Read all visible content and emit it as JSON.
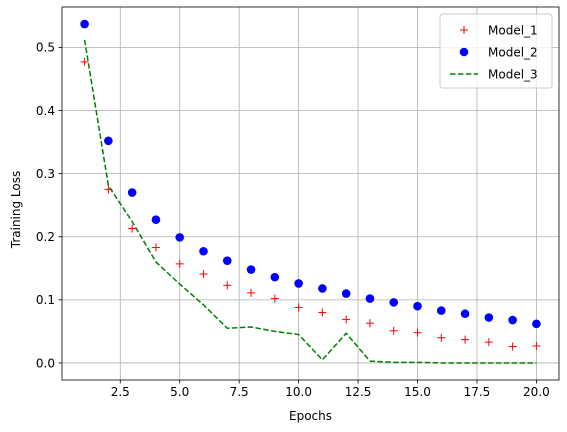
{
  "chart_data": {
    "type": "line",
    "xlabel": "Epochs",
    "ylabel": "Training Loss",
    "xlim": [
      0.05,
      20.95
    ],
    "ylim": [
      -0.027,
      0.564
    ],
    "xticks": [
      2.5,
      5.0,
      7.5,
      10.0,
      12.5,
      15.0,
      17.5,
      20.0
    ],
    "xtick_labels": [
      "2.5",
      "5.0",
      "7.5",
      "10.0",
      "12.5",
      "15.0",
      "17.5",
      "20.0"
    ],
    "yticks": [
      0.0,
      0.1,
      0.2,
      0.3,
      0.4,
      0.5
    ],
    "ytick_labels": [
      "0.0",
      "0.1",
      "0.2",
      "0.3",
      "0.4",
      "0.5"
    ],
    "grid": true,
    "legend_position": "top-right",
    "x": [
      1,
      2,
      3,
      4,
      5,
      6,
      7,
      8,
      9,
      10,
      11,
      12,
      13,
      14,
      15,
      16,
      17,
      18,
      19,
      20
    ],
    "series": [
      {
        "name": "Model_1",
        "style": "plus-marker",
        "color": "#ff0000",
        "values": [
          0.477,
          0.275,
          0.213,
          0.183,
          0.157,
          0.141,
          0.123,
          0.111,
          0.102,
          0.088,
          0.08,
          0.069,
          0.063,
          0.051,
          0.048,
          0.04,
          0.037,
          0.033,
          0.026,
          0.027
        ]
      },
      {
        "name": "Model_2",
        "style": "circle-marker",
        "color": "#0000ff",
        "values": [
          0.537,
          0.352,
          0.27,
          0.227,
          0.199,
          0.177,
          0.162,
          0.148,
          0.136,
          0.126,
          0.118,
          0.11,
          0.102,
          0.096,
          0.09,
          0.083,
          0.078,
          0.072,
          0.068,
          0.062
        ]
      },
      {
        "name": "Model_3",
        "style": "dashed-line",
        "color": "#008000",
        "values": [
          0.512,
          0.281,
          0.224,
          0.16,
          0.125,
          0.092,
          0.055,
          0.057,
          0.05,
          0.045,
          0.005,
          0.047,
          0.003,
          0.001,
          0.001,
          0.0,
          0.0,
          0.0,
          0.0,
          0.0
        ]
      }
    ]
  }
}
